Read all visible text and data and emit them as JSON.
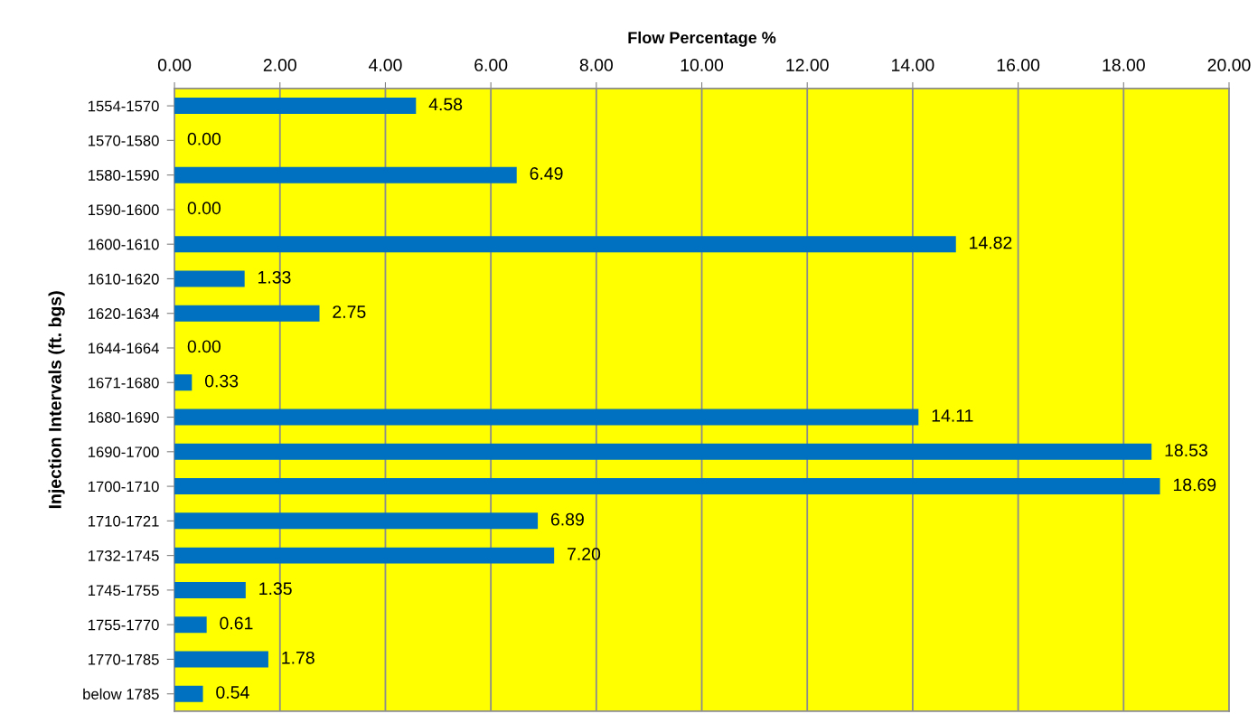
{
  "chart_data": {
    "type": "bar",
    "orientation": "horizontal",
    "xlabel": "Flow Percentage %",
    "ylabel": "Injection Intervals (ft. bgs)",
    "categories": [
      "1554-1570",
      "1570-1580",
      "1580-1590",
      "1590-1600",
      "1600-1610",
      "1610-1620",
      "1620-1634",
      "1644-1664",
      "1671-1680",
      "1680-1690",
      "1690-1700",
      "1700-1710",
      "1710-1721",
      "1732-1745",
      "1745-1755",
      "1755-1770",
      "1770-1785",
      "below 1785"
    ],
    "values": [
      4.58,
      0.0,
      6.49,
      0.0,
      14.82,
      1.33,
      2.75,
      0.0,
      0.33,
      14.11,
      18.53,
      18.69,
      6.89,
      7.2,
      1.35,
      0.61,
      1.78,
      0.54
    ],
    "value_labels": [
      "4.58",
      "0.00",
      "6.49",
      "0.00",
      "14.82",
      "1.33",
      "2.75",
      "0.00",
      "0.33",
      "14.11",
      "18.53",
      "18.69",
      "6.89",
      "7.20",
      "1.35",
      "0.61",
      "1.78",
      "0.54"
    ],
    "color": "#0070c0",
    "xlim": [
      0,
      20
    ],
    "xticks": [
      {
        "value": 0,
        "label": "0.00"
      },
      {
        "value": 2,
        "label": "2.00"
      },
      {
        "value": 4,
        "label": "4.00"
      },
      {
        "value": 6,
        "label": "6.00"
      },
      {
        "value": 8,
        "label": "8.00"
      },
      {
        "value": 10,
        "label": "10.00"
      },
      {
        "value": 12,
        "label": "12.00"
      },
      {
        "value": 14,
        "label": "14.00"
      },
      {
        "value": 16,
        "label": "16.00"
      },
      {
        "value": 18,
        "label": "18.00"
      },
      {
        "value": 20,
        "label": "20.00"
      }
    ],
    "grid": "x",
    "legend": false
  }
}
